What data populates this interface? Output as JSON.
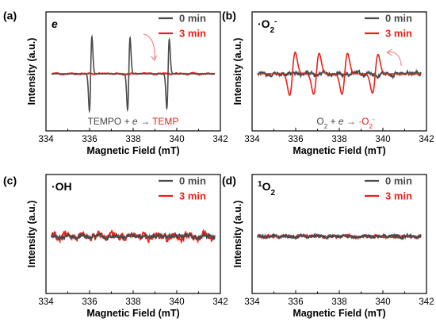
{
  "chart_data": [
    {
      "type": "line",
      "panel_label": "(a)",
      "tag": "e",
      "tag_parts": [
        {
          "t": "e",
          "italic": true
        }
      ],
      "xlabel": "Magnetic Field (mT)",
      "ylabel": "Intensity (a.u.)",
      "xlim": [
        334,
        342
      ],
      "ylim": [
        -1,
        1
      ],
      "xticks": [
        "334",
        "336",
        "338",
        "340",
        "342"
      ],
      "legend_position": "top-right",
      "annotation": [
        {
          "t": "TEMPO + ",
          "c": "#444444"
        },
        {
          "t": "e",
          "c": "#444444",
          "italic": true
        },
        {
          "t": " → ",
          "c": "#444444"
        },
        {
          "t": "TEMP",
          "c": "#e8221a"
        }
      ],
      "has_arrow": true,
      "series": [
        {
          "name": "0 min",
          "color": "#4a4a4a",
          "peaks": [
            {
              "c": 336.05,
              "a": 1.0
            },
            {
              "c": 337.8,
              "a": 0.97
            },
            {
              "c": 339.6,
              "a": 0.93
            }
          ],
          "width": 0.08,
          "noise": 0.0
        },
        {
          "name": "3 min",
          "color": "#e8221a",
          "peaks": [],
          "width": 0.1,
          "noise": 0.012
        }
      ]
    },
    {
      "type": "line",
      "panel_label": "(b)",
      "tag": "·O2-",
      "tag_parts": [
        {
          "t": "·O"
        },
        {
          "t": "2",
          "sub": true
        },
        {
          "t": "-",
          "sup": true
        }
      ],
      "xlabel": "Magnetic Field (mT)",
      "ylabel": "Intensity (a.u.)",
      "xlim": [
        334,
        342
      ],
      "ylim": [
        -1,
        1
      ],
      "xticks": [
        "334",
        "336",
        "338",
        "340",
        "342"
      ],
      "legend_position": "top-right",
      "annotation": [
        {
          "t": "O",
          "c": "#444444"
        },
        {
          "t": "2",
          "c": "#444444",
          "sub": true
        },
        {
          "t": " + ",
          "c": "#444444"
        },
        {
          "t": "e",
          "c": "#444444",
          "italic": true
        },
        {
          "t": " → ",
          "c": "#444444"
        },
        {
          "t": "·O",
          "c": "#e8221a"
        },
        {
          "t": "2",
          "c": "#e8221a",
          "sub": true
        },
        {
          "t": "-",
          "c": "#e8221a",
          "sup": true
        }
      ],
      "has_arrow": true,
      "series": [
        {
          "name": "0 min",
          "color": "#4a4a4a",
          "peaks": [],
          "width": 0.2,
          "noise": 0.035
        },
        {
          "name": "3 min",
          "color": "#e8221a",
          "peaks": [
            {
              "c": 335.85,
              "a": 0.58
            },
            {
              "c": 336.95,
              "a": 0.55
            },
            {
              "c": 338.25,
              "a": 0.55
            },
            {
              "c": 339.65,
              "a": 0.52
            }
          ],
          "width": 0.18,
          "noise": 0.0
        }
      ]
    },
    {
      "type": "line",
      "panel_label": "(c)",
      "tag": "·OH",
      "tag_parts": [
        {
          "t": "·OH"
        }
      ],
      "xlabel": "Magnetic Field (mT)",
      "ylabel": "Intensity (a.u.)",
      "xlim": [
        334,
        342
      ],
      "ylim": [
        -1,
        1
      ],
      "xticks": [
        "334",
        "336",
        "338",
        "340",
        "342"
      ],
      "legend_position": "top-right",
      "annotation": [],
      "has_arrow": false,
      "series": [
        {
          "name": "0 min",
          "color": "#4a4a4a",
          "peaks": [],
          "width": 0.2,
          "noise": 0.035
        },
        {
          "name": "3 min",
          "color": "#e8221a",
          "peaks": [],
          "width": 0.2,
          "noise": 0.07
        }
      ]
    },
    {
      "type": "line",
      "panel_label": "(d)",
      "tag": "1O2",
      "tag_parts": [
        {
          "t": "1",
          "sup": true
        },
        {
          "t": "O"
        },
        {
          "t": "2",
          "sub": true
        }
      ],
      "xlabel": "Magnetic Field (mT)",
      "ylabel": "Intensity (a.u.)",
      "xlim": [
        334,
        342
      ],
      "ylim": [
        -1,
        1
      ],
      "xticks": [
        "334",
        "336",
        "338",
        "340",
        "342"
      ],
      "legend_position": "top-right",
      "annotation": [],
      "has_arrow": false,
      "series": [
        {
          "name": "0 min",
          "color": "#4a4a4a",
          "peaks": [],
          "width": 0.2,
          "noise": 0.025
        },
        {
          "name": "3 min",
          "color": "#e8221a",
          "peaks": [],
          "width": 0.2,
          "noise": 0.02
        }
      ]
    }
  ]
}
